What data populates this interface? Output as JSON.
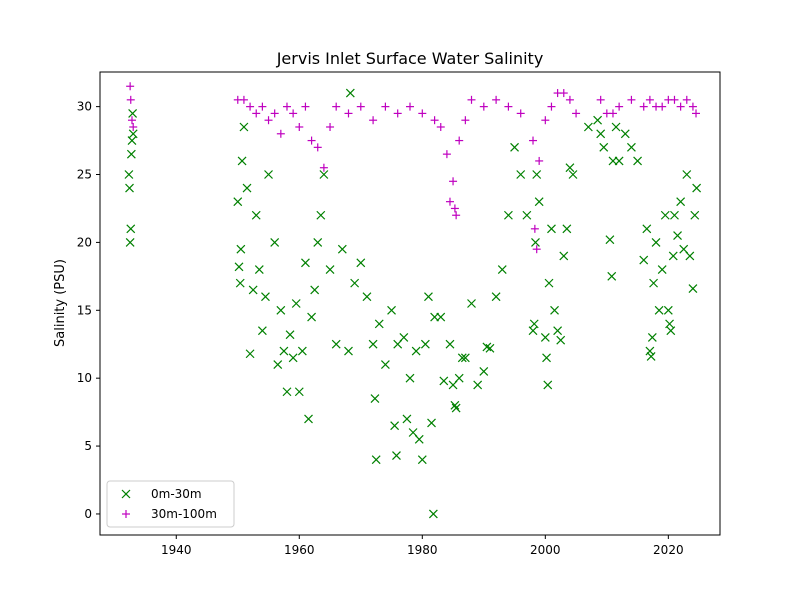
{
  "chart_data": {
    "type": "scatter",
    "title": "Jervis Inlet Surface Water Salinity",
    "xlabel": "",
    "ylabel": "Salinity (PSU)",
    "xlim": [
      1927.6,
      2028.4
    ],
    "ylim": [
      -1.55,
      32.55
    ],
    "x_ticks": [
      1940,
      1960,
      1980,
      2000,
      2020
    ],
    "y_ticks": [
      0,
      5,
      10,
      15,
      20,
      25,
      30
    ],
    "grid": false,
    "legend_position": "lower-left",
    "series": [
      {
        "name": "0m-30m",
        "marker": "x",
        "color": "#008000",
        "points": [
          [
            1932.3,
            25.0
          ],
          [
            1932.4,
            24.0
          ],
          [
            1932.5,
            20.0
          ],
          [
            1932.6,
            21.0
          ],
          [
            1932.7,
            26.5
          ],
          [
            1932.8,
            27.5
          ],
          [
            1932.9,
            29.5
          ],
          [
            1933.0,
            28.0
          ],
          [
            1950.0,
            23.0
          ],
          [
            1950.2,
            18.2
          ],
          [
            1950.4,
            17.0
          ],
          [
            1950.5,
            19.5
          ],
          [
            1950.7,
            26.0
          ],
          [
            1951.0,
            28.5
          ],
          [
            1951.5,
            24.0
          ],
          [
            1952.0,
            11.8
          ],
          [
            1952.5,
            16.5
          ],
          [
            1953.0,
            22.0
          ],
          [
            1953.5,
            18.0
          ],
          [
            1954.0,
            13.5
          ],
          [
            1954.5,
            16.0
          ],
          [
            1955.0,
            25.0
          ],
          [
            1956.0,
            20.0
          ],
          [
            1956.5,
            11.0
          ],
          [
            1957.0,
            15.0
          ],
          [
            1957.5,
            12.0
          ],
          [
            1958.0,
            9.0
          ],
          [
            1958.5,
            13.2
          ],
          [
            1959.0,
            11.5
          ],
          [
            1959.5,
            15.5
          ],
          [
            1960.0,
            9.0
          ],
          [
            1960.5,
            12.0
          ],
          [
            1961.0,
            18.5
          ],
          [
            1961.5,
            7.0
          ],
          [
            1962.0,
            14.5
          ],
          [
            1962.5,
            16.5
          ],
          [
            1963.0,
            20.0
          ],
          [
            1963.5,
            22.0
          ],
          [
            1964.0,
            25.0
          ],
          [
            1965.0,
            18.0
          ],
          [
            1966.0,
            12.5
          ],
          [
            1967.0,
            19.5
          ],
          [
            1968.0,
            12.0
          ],
          [
            1968.3,
            31.0
          ],
          [
            1969.0,
            17.0
          ],
          [
            1970.0,
            18.5
          ],
          [
            1971.0,
            16.0
          ],
          [
            1972.0,
            12.5
          ],
          [
            1972.3,
            8.5
          ],
          [
            1972.5,
            4.0
          ],
          [
            1973.0,
            14.0
          ],
          [
            1974.0,
            11.0
          ],
          [
            1975.0,
            15.0
          ],
          [
            1975.5,
            6.5
          ],
          [
            1975.8,
            4.3
          ],
          [
            1976.0,
            12.5
          ],
          [
            1977.0,
            13.0
          ],
          [
            1977.5,
            7.0
          ],
          [
            1978.0,
            10.0
          ],
          [
            1978.5,
            6.0
          ],
          [
            1979.0,
            12.0
          ],
          [
            1979.5,
            5.5
          ],
          [
            1980.0,
            4.0
          ],
          [
            1980.5,
            12.5
          ],
          [
            1981.0,
            16.0
          ],
          [
            1981.5,
            6.7
          ],
          [
            1981.8,
            0.0
          ],
          [
            1982.0,
            14.5
          ],
          [
            1983.0,
            14.5
          ],
          [
            1983.5,
            9.8
          ],
          [
            1984.5,
            12.5
          ],
          [
            1985.0,
            9.5
          ],
          [
            1985.3,
            8.0
          ],
          [
            1985.5,
            7.8
          ],
          [
            1986.0,
            10.0
          ],
          [
            1986.5,
            11.5
          ],
          [
            1987.0,
            11.5
          ],
          [
            1988.0,
            15.5
          ],
          [
            1989.0,
            9.5
          ],
          [
            1990.0,
            10.5
          ],
          [
            1990.5,
            12.3
          ],
          [
            1991.0,
            12.2
          ],
          [
            1992.0,
            16.0
          ],
          [
            1993.0,
            18.0
          ],
          [
            1994.0,
            22.0
          ],
          [
            1995.0,
            27.0
          ],
          [
            1996.0,
            25.0
          ],
          [
            1997.0,
            22.0
          ],
          [
            1998.0,
            13.5
          ],
          [
            1998.2,
            14.0
          ],
          [
            1998.4,
            20.0
          ],
          [
            1998.6,
            25.0
          ],
          [
            1999.0,
            23.0
          ],
          [
            2000.0,
            13.0
          ],
          [
            2000.2,
            11.5
          ],
          [
            2000.4,
            9.5
          ],
          [
            2000.6,
            17.0
          ],
          [
            2001.0,
            21.0
          ],
          [
            2001.5,
            15.0
          ],
          [
            2002.0,
            13.5
          ],
          [
            2002.5,
            12.8
          ],
          [
            2003.0,
            19.0
          ],
          [
            2003.5,
            21.0
          ],
          [
            2004.0,
            25.5
          ],
          [
            2004.5,
            25.0
          ],
          [
            2007.0,
            28.5
          ],
          [
            2008.5,
            29.0
          ],
          [
            2009.0,
            28.0
          ],
          [
            2009.5,
            27.0
          ],
          [
            2010.5,
            20.2
          ],
          [
            2010.8,
            17.5
          ],
          [
            2011.0,
            26.0
          ],
          [
            2011.5,
            28.5
          ],
          [
            2012.0,
            26.0
          ],
          [
            2013.0,
            28.0
          ],
          [
            2014.0,
            27.0
          ],
          [
            2015.0,
            26.0
          ],
          [
            2016.0,
            18.7
          ],
          [
            2016.5,
            21.0
          ],
          [
            2017.0,
            12.0
          ],
          [
            2017.2,
            11.6
          ],
          [
            2017.4,
            13.0
          ],
          [
            2017.6,
            17.0
          ],
          [
            2018.0,
            20.0
          ],
          [
            2018.5,
            15.0
          ],
          [
            2019.0,
            18.0
          ],
          [
            2019.5,
            22.0
          ],
          [
            2020.0,
            15.0
          ],
          [
            2020.2,
            14.0
          ],
          [
            2020.4,
            13.5
          ],
          [
            2020.8,
            19.0
          ],
          [
            2021.0,
            22.0
          ],
          [
            2021.5,
            20.5
          ],
          [
            2022.0,
            23.0
          ],
          [
            2022.5,
            19.5
          ],
          [
            2023.0,
            25.0
          ],
          [
            2023.5,
            19.0
          ],
          [
            2024.0,
            16.6
          ],
          [
            2024.3,
            22.0
          ],
          [
            2024.6,
            24.0
          ]
        ]
      },
      {
        "name": "30m-100m",
        "marker": "+",
        "color": "#bf00bf",
        "points": [
          [
            1932.5,
            31.5
          ],
          [
            1932.6,
            30.5
          ],
          [
            1932.8,
            29.0
          ],
          [
            1933.0,
            28.5
          ],
          [
            1950.0,
            30.5
          ],
          [
            1951.0,
            30.5
          ],
          [
            1952.0,
            30.0
          ],
          [
            1953.0,
            29.5
          ],
          [
            1954.0,
            30.0
          ],
          [
            1955.0,
            29.0
          ],
          [
            1956.0,
            29.5
          ],
          [
            1957.0,
            28.0
          ],
          [
            1958.0,
            30.0
          ],
          [
            1959.0,
            29.5
          ],
          [
            1960.0,
            28.5
          ],
          [
            1961.0,
            30.0
          ],
          [
            1962.0,
            27.5
          ],
          [
            1963.0,
            27.0
          ],
          [
            1964.0,
            25.5
          ],
          [
            1965.0,
            28.5
          ],
          [
            1966.0,
            30.0
          ],
          [
            1968.0,
            29.5
          ],
          [
            1970.0,
            30.0
          ],
          [
            1972.0,
            29.0
          ],
          [
            1974.0,
            30.0
          ],
          [
            1976.0,
            29.5
          ],
          [
            1978.0,
            30.0
          ],
          [
            1980.0,
            29.5
          ],
          [
            1982.0,
            29.0
          ],
          [
            1983.0,
            28.5
          ],
          [
            1984.0,
            26.5
          ],
          [
            1984.5,
            23.0
          ],
          [
            1985.0,
            24.5
          ],
          [
            1985.3,
            22.5
          ],
          [
            1985.5,
            22.0
          ],
          [
            1986.0,
            27.5
          ],
          [
            1987.0,
            29.0
          ],
          [
            1988.0,
            30.5
          ],
          [
            1990.0,
            30.0
          ],
          [
            1992.0,
            30.5
          ],
          [
            1994.0,
            30.0
          ],
          [
            1996.0,
            29.5
          ],
          [
            1998.0,
            27.5
          ],
          [
            1998.3,
            21.0
          ],
          [
            1998.6,
            19.5
          ],
          [
            1999.0,
            26.0
          ],
          [
            2000.0,
            29.0
          ],
          [
            2001.0,
            30.0
          ],
          [
            2002.0,
            31.0
          ],
          [
            2003.0,
            31.0
          ],
          [
            2004.0,
            30.5
          ],
          [
            2005.0,
            29.5
          ],
          [
            2009.0,
            30.5
          ],
          [
            2010.0,
            29.5
          ],
          [
            2011.0,
            29.5
          ],
          [
            2012.0,
            30.0
          ],
          [
            2014.0,
            30.5
          ],
          [
            2016.0,
            30.0
          ],
          [
            2017.0,
            30.5
          ],
          [
            2018.0,
            30.0
          ],
          [
            2019.0,
            30.0
          ],
          [
            2020.0,
            30.5
          ],
          [
            2021.0,
            30.5
          ],
          [
            2022.0,
            30.0
          ],
          [
            2023.0,
            30.5
          ],
          [
            2024.0,
            30.0
          ],
          [
            2024.5,
            29.5
          ]
        ]
      }
    ]
  }
}
